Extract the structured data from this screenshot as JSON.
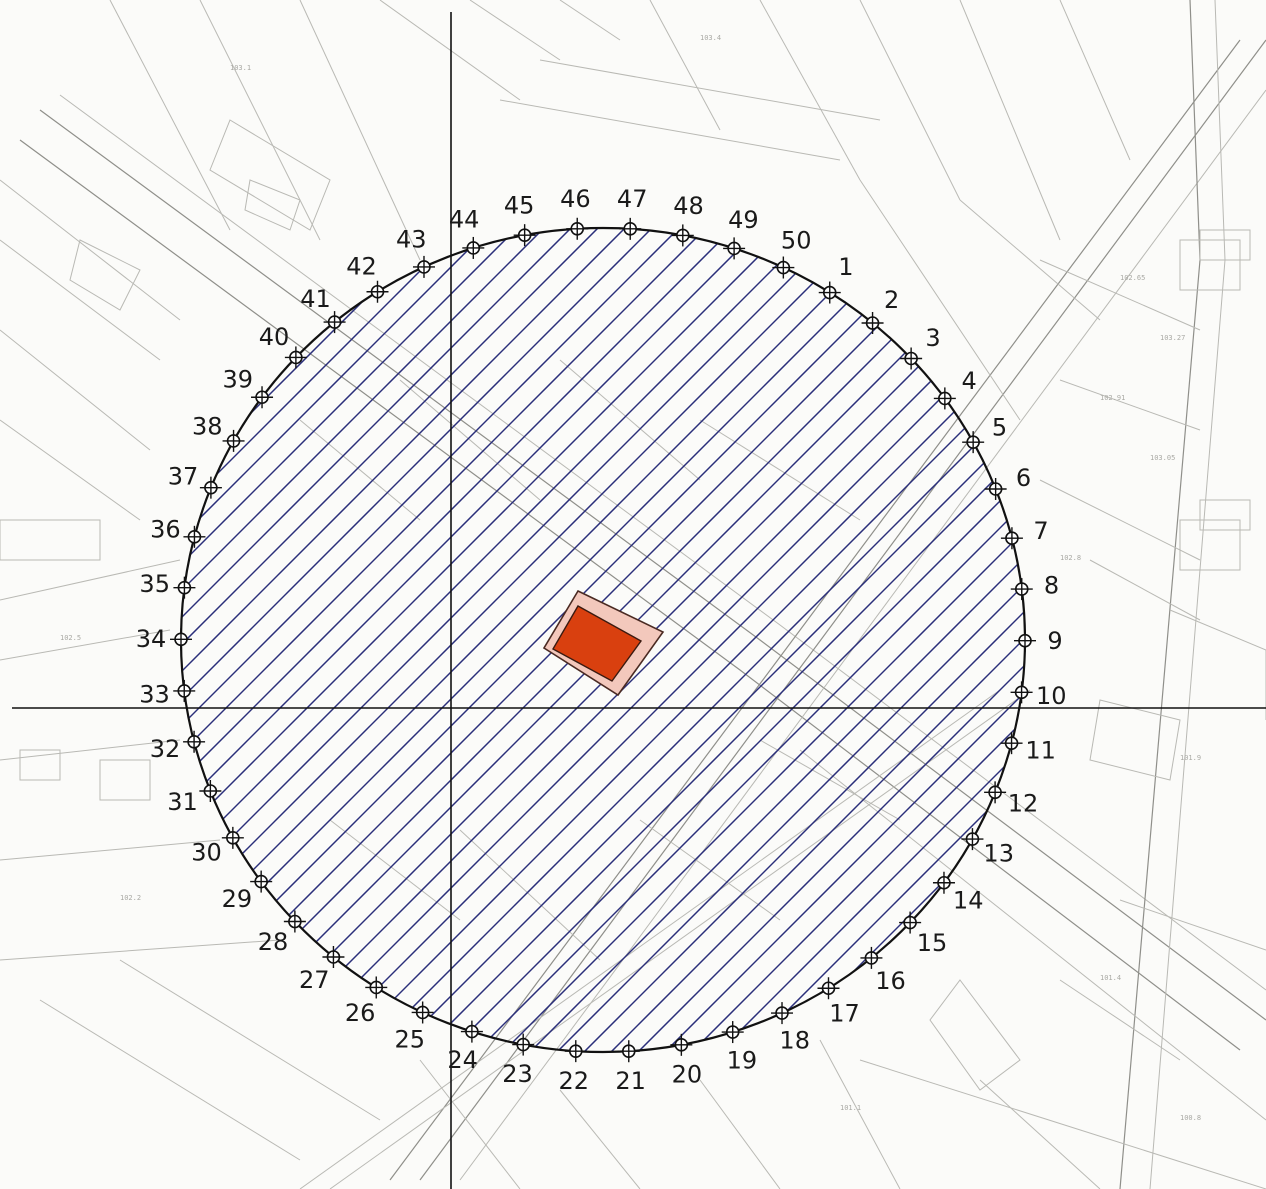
{
  "map": {
    "colors": {
      "hatch": "#2b2f7a",
      "circle": "#111111",
      "axis": "#111111",
      "building_fill": "#d9400f",
      "building_outline": "#f3c8bc",
      "basemap": "#b9b9b4"
    },
    "points": [
      {
        "label": "1"
      },
      {
        "label": "2"
      },
      {
        "label": "3"
      },
      {
        "label": "4"
      },
      {
        "label": "5"
      },
      {
        "label": "6"
      },
      {
        "label": "7"
      },
      {
        "label": "8"
      },
      {
        "label": "9"
      },
      {
        "label": "10"
      },
      {
        "label": "11"
      },
      {
        "label": "12"
      },
      {
        "label": "13"
      },
      {
        "label": "14"
      },
      {
        "label": "15"
      },
      {
        "label": "16"
      },
      {
        "label": "17"
      },
      {
        "label": "18"
      },
      {
        "label": "19"
      },
      {
        "label": "20"
      },
      {
        "label": "21"
      },
      {
        "label": "22"
      },
      {
        "label": "23"
      },
      {
        "label": "24"
      },
      {
        "label": "25"
      },
      {
        "label": "26"
      },
      {
        "label": "27"
      },
      {
        "label": "28"
      },
      {
        "label": "29"
      },
      {
        "label": "30"
      },
      {
        "label": "31"
      },
      {
        "label": "32"
      },
      {
        "label": "33"
      },
      {
        "label": "34"
      },
      {
        "label": "35"
      },
      {
        "label": "36"
      },
      {
        "label": "37"
      },
      {
        "label": "38"
      },
      {
        "label": "39"
      },
      {
        "label": "40"
      },
      {
        "label": "41"
      },
      {
        "label": "42"
      },
      {
        "label": "43"
      },
      {
        "label": "44"
      },
      {
        "label": "45"
      },
      {
        "label": "46"
      },
      {
        "label": "47"
      },
      {
        "label": "48"
      },
      {
        "label": "49"
      },
      {
        "label": "50"
      }
    ]
  }
}
